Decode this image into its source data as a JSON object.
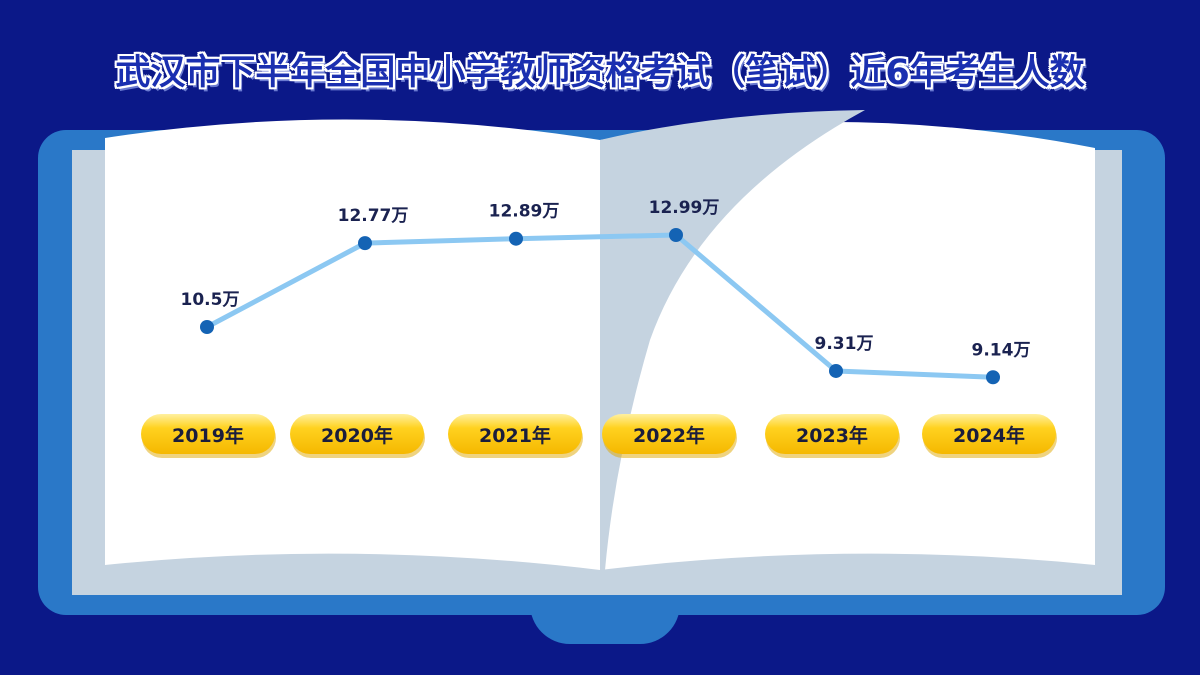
{
  "title": "武汉市下半年全国中小学教师资格考试（笔试）近6年考生人数",
  "chart_data": {
    "type": "line",
    "title": "武汉市下半年全国中小学教师资格考试（笔试）近6年考生人数",
    "categories": [
      "2019年",
      "2020年",
      "2021年",
      "2022年",
      "2023年",
      "2024年"
    ],
    "values": [
      10.5,
      12.77,
      12.89,
      12.99,
      9.31,
      9.14
    ],
    "data_labels": [
      "10.5万",
      "12.77万",
      "12.89万",
      "12.99万",
      "9.31万",
      "9.14万"
    ],
    "unit": "万",
    "colors": {
      "line": "#8cc8f2",
      "point": "#1463b4",
      "pill": "#ffd21f",
      "background": "#0b1888",
      "book_cover": "#2a78c8"
    }
  }
}
